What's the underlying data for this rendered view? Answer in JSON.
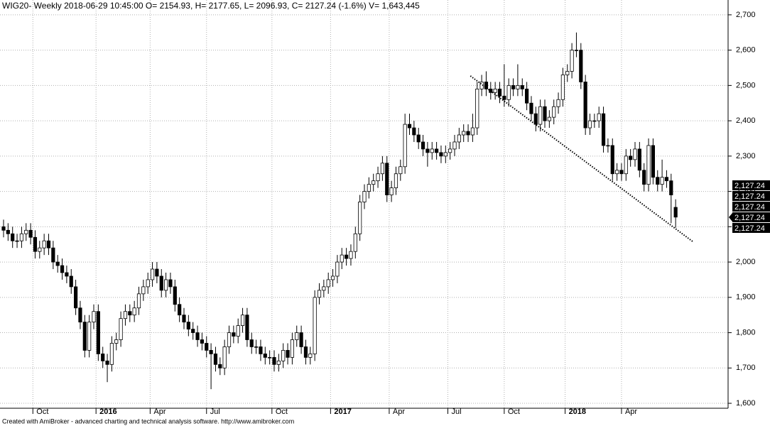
{
  "chart_data": {
    "type": "candlestick",
    "title": "WIG20- Weekly 2018-06-29 10:45:00 O= 2154.93, H= 2177.65, L= 2096.93, C= 2127.24 (-1.6%) V= 1,643,445",
    "footer": "Created with AmiBroker - advanced charting and technical analysis software. http://www.amibroker.com",
    "open": [
      2100,
      2090,
      2080,
      2060,
      2060,
      2080,
      2090,
      2070,
      2030,
      2040,
      2060,
      2040,
      2000,
      1990,
      1970,
      1960,
      1930,
      1870,
      1830,
      1750,
      1830,
      1860,
      1740,
      1720,
      1710,
      1770,
      1780,
      1840,
      1860,
      1850,
      1870,
      1910,
      1930,
      1950,
      1980,
      1960,
      1920,
      1950,
      1930,
      1880,
      1850,
      1830,
      1810,
      1800,
      1780,
      1770,
      1750,
      1740,
      1710,
      1700,
      1760,
      1800,
      1790,
      1820,
      1850,
      1780,
      1760,
      1760,
      1740,
      1730,
      1730,
      1710,
      1720,
      1750,
      1730,
      1780,
      1800,
      1760,
      1730,
      1740,
      1900,
      1920,
      1930,
      1950,
      1960,
      2000,
      2020,
      2010,
      2030,
      2080,
      2170,
      2200,
      2220,
      2230,
      2250,
      2280,
      2190,
      2210,
      2250,
      2270,
      2390,
      2380,
      2360,
      2340,
      2320,
      2310,
      2320,
      2310,
      2300,
      2310,
      2320,
      2340,
      2360,
      2370,
      2360,
      2380,
      2490,
      2510,
      2490,
      2480,
      2490,
      2470,
      2460,
      2500,
      2490,
      2500,
      2490,
      2450,
      2420,
      2390,
      2440,
      2400,
      2410,
      2440,
      2460,
      2530,
      2540,
      2600,
      2600,
      2510,
      2380,
      2400,
      2400,
      2420,
      2330,
      2330,
      2250,
      2260,
      2250,
      2300,
      2290,
      2320,
      2260,
      2220,
      2330,
      2240,
      2220,
      2240,
      2230,
      2154.93
    ],
    "high": [
      2120,
      2110,
      2100,
      2080,
      2100,
      2110,
      2110,
      2090,
      2060,
      2080,
      2080,
      2060,
      2020,
      2010,
      1990,
      1980,
      1950,
      1890,
      1850,
      1850,
      1880,
      1880,
      1760,
      1740,
      1790,
      1800,
      1860,
      1880,
      1880,
      1890,
      1930,
      1950,
      1970,
      2000,
      2000,
      1980,
      1970,
      1970,
      1950,
      1900,
      1870,
      1850,
      1830,
      1820,
      1800,
      1790,
      1770,
      1760,
      1730,
      1780,
      1820,
      1820,
      1840,
      1870,
      1870,
      1800,
      1780,
      1780,
      1760,
      1750,
      1750,
      1740,
      1770,
      1770,
      1800,
      1820,
      1820,
      1780,
      1760,
      1920,
      1940,
      1950,
      1970,
      1980,
      2020,
      2040,
      2040,
      2050,
      2100,
      2190,
      2220,
      2240,
      2250,
      2270,
      2300,
      2300,
      2230,
      2270,
      2290,
      2420,
      2420,
      2400,
      2380,
      2360,
      2340,
      2340,
      2340,
      2330,
      2330,
      2340,
      2360,
      2380,
      2390,
      2390,
      2420,
      2510,
      2530,
      2540,
      2510,
      2510,
      2510,
      2560,
      2520,
      2520,
      2560,
      2520,
      2510,
      2470,
      2440,
      2460,
      2460,
      2430,
      2460,
      2480,
      2550,
      2560,
      2620,
      2650,
      2620,
      2530,
      2420,
      2420,
      2440,
      2440,
      2350,
      2350,
      2280,
      2280,
      2320,
      2320,
      2340,
      2340,
      2280,
      2350,
      2350,
      2260,
      2290,
      2260,
      2250,
      2177.65
    ],
    "low": [
      2070,
      2060,
      2040,
      2040,
      2040,
      2060,
      2050,
      2010,
      2010,
      2020,
      2020,
      1980,
      1970,
      1950,
      1940,
      1910,
      1850,
      1810,
      1730,
      1730,
      1810,
      1720,
      1700,
      1660,
      1690,
      1750,
      1760,
      1820,
      1830,
      1830,
      1850,
      1890,
      1910,
      1930,
      1940,
      1900,
      1900,
      1910,
      1860,
      1830,
      1810,
      1790,
      1780,
      1760,
      1750,
      1730,
      1640,
      1690,
      1680,
      1680,
      1740,
      1770,
      1770,
      1800,
      1760,
      1740,
      1740,
      1720,
      1710,
      1710,
      1690,
      1690,
      1700,
      1710,
      1710,
      1760,
      1740,
      1710,
      1710,
      1720,
      1880,
      1900,
      1910,
      1930,
      1940,
      1980,
      1990,
      1990,
      2010,
      2060,
      2150,
      2180,
      2200,
      2210,
      2230,
      2170,
      2170,
      2190,
      2230,
      2250,
      2360,
      2340,
      2320,
      2300,
      2270,
      2290,
      2290,
      2280,
      2280,
      2290,
      2300,
      2320,
      2340,
      2340,
      2340,
      2360,
      2470,
      2470,
      2460,
      2460,
      2450,
      2440,
      2440,
      2470,
      2470,
      2470,
      2430,
      2400,
      2370,
      2370,
      2380,
      2380,
      2390,
      2420,
      2440,
      2510,
      2520,
      2580,
      2490,
      2360,
      2360,
      2380,
      2380,
      2310,
      2310,
      2230,
      2230,
      2230,
      2230,
      2270,
      2270,
      2240,
      2200,
      2200,
      2220,
      2200,
      2200,
      2210,
      2110,
      2096.93
    ],
    "close": [
      2090,
      2080,
      2060,
      2060,
      2080,
      2090,
      2070,
      2030,
      2040,
      2060,
      2040,
      2000,
      1990,
      1970,
      1960,
      1930,
      1870,
      1830,
      1750,
      1830,
      1860,
      1740,
      1720,
      1710,
      1770,
      1780,
      1840,
      1860,
      1850,
      1870,
      1910,
      1930,
      1950,
      1980,
      1960,
      1920,
      1950,
      1930,
      1880,
      1850,
      1830,
      1810,
      1800,
      1780,
      1770,
      1750,
      1740,
      1710,
      1700,
      1760,
      1800,
      1790,
      1820,
      1850,
      1780,
      1760,
      1760,
      1740,
      1730,
      1730,
      1710,
      1720,
      1750,
      1730,
      1780,
      1800,
      1760,
      1730,
      1740,
      1900,
      1920,
      1930,
      1950,
      1960,
      2000,
      2020,
      2010,
      2030,
      2080,
      2170,
      2200,
      2220,
      2230,
      2250,
      2280,
      2190,
      2210,
      2250,
      2270,
      2390,
      2380,
      2360,
      2340,
      2320,
      2310,
      2320,
      2310,
      2300,
      2310,
      2320,
      2340,
      2360,
      2370,
      2360,
      2380,
      2490,
      2510,
      2490,
      2480,
      2490,
      2470,
      2460,
      2500,
      2490,
      2500,
      2490,
      2450,
      2420,
      2390,
      2440,
      2400,
      2410,
      2440,
      2460,
      2530,
      2540,
      2600,
      2600,
      2510,
      2380,
      2400,
      2400,
      2420,
      2330,
      2330,
      2250,
      2260,
      2250,
      2300,
      2290,
      2320,
      2260,
      2220,
      2330,
      2240,
      2220,
      2240,
      2230,
      2190,
      2127.24
    ],
    "up_color": "#ffffff",
    "down_color": "#000000",
    "outline_color": "#000000",
    "trendline": {
      "x": [
        103.5,
        153
      ],
      "y": [
        2527,
        2056
      ]
    },
    "price_labels": [
      "2,127.24",
      "2,127.24",
      "2,127.24",
      "2,127.24",
      "2,127.24"
    ],
    "ylim": [
      1586,
      2742
    ],
    "yticks": [
      {
        "value": 1600,
        "label": "1,600"
      },
      {
        "value": 1700,
        "label": "1,700"
      },
      {
        "value": 1800,
        "label": "1,800"
      },
      {
        "value": 1900,
        "label": "1,900"
      },
      {
        "value": 2000,
        "label": "2,000"
      },
      {
        "value": 2100,
        "label": "2,100"
      },
      {
        "value": 2200,
        "label": "2,200"
      },
      {
        "value": 2300,
        "label": "2,300"
      },
      {
        "value": 2400,
        "label": "2,400"
      },
      {
        "value": 2500,
        "label": "2,500"
      },
      {
        "value": 2600,
        "label": "2,600"
      },
      {
        "value": 2700,
        "label": "2,700"
      }
    ],
    "xticks": [
      {
        "value": 6.5,
        "label": "Oct",
        "bold": false
      },
      {
        "value": 20.5,
        "label": "2016",
        "bold": true
      },
      {
        "value": 32.5,
        "label": "Apr",
        "bold": false
      },
      {
        "value": 45,
        "label": "Jul",
        "bold": false
      },
      {
        "value": 59.5,
        "label": "Oct",
        "bold": false
      },
      {
        "value": 72.5,
        "label": "2017",
        "bold": true
      },
      {
        "value": 85.5,
        "label": "Apr",
        "bold": false
      },
      {
        "value": 98.5,
        "label": "Jul",
        "bold": false
      },
      {
        "value": 111,
        "label": "Oct",
        "bold": false
      },
      {
        "value": 124.5,
        "label": "2018",
        "bold": true
      },
      {
        "value": 137,
        "label": "Apr",
        "bold": false
      }
    ],
    "grid": true
  }
}
